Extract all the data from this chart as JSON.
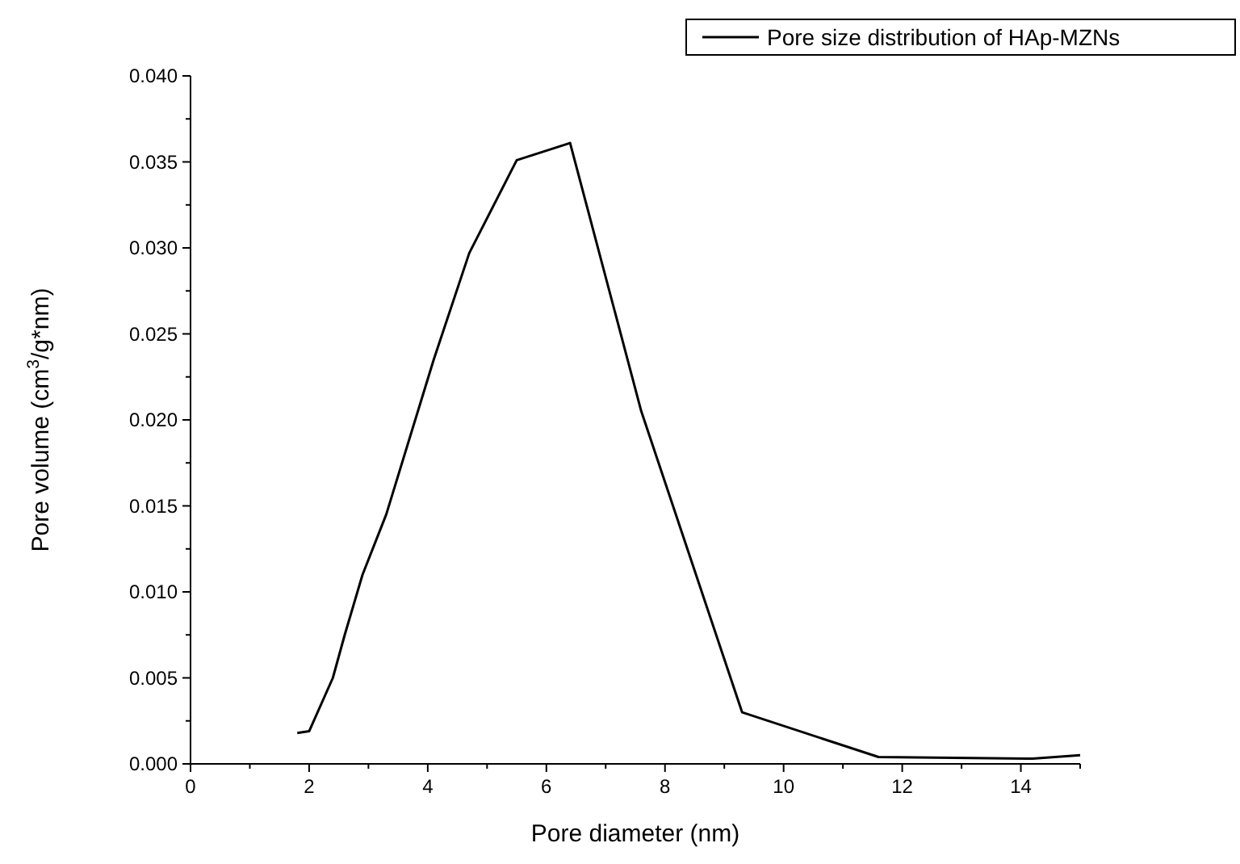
{
  "chart_data": {
    "type": "line",
    "xlabel": "Pore diameter (nm)",
    "ylabel": "Pore volume (cm$^{3}$/g*nm)",
    "x": [
      1.8,
      2.0,
      2.4,
      2.6,
      2.9,
      3.3,
      4.1,
      4.7,
      5.5,
      6.4,
      7.6,
      9.3,
      11.6,
      14.2,
      15.0
    ],
    "series": [
      {
        "name": "Pore size distribution of HAp-MZNs",
        "color": "#000000",
        "values": [
          0.0018,
          0.0019,
          0.005,
          0.0075,
          0.011,
          0.0145,
          0.0235,
          0.0297,
          0.0351,
          0.0361,
          0.0205,
          0.003,
          0.0004,
          0.0003,
          0.0005
        ]
      }
    ],
    "xlim": [
      0,
      15
    ],
    "ylim": [
      0,
      0.04
    ],
    "xticks": [
      0,
      {
        "value": 1,
        "label": null
      },
      2,
      {
        "value": 3,
        "label": null
      },
      4,
      {
        "value": 5,
        "label": null
      },
      6,
      {
        "value": 7,
        "label": null
      },
      8,
      {
        "value": 9,
        "label": null
      },
      10,
      {
        "value": 11,
        "label": null
      },
      12,
      {
        "value": 13,
        "label": null
      },
      14,
      {
        "value": 15,
        "label": null
      }
    ],
    "yticks": [
      {
        "value": 0,
        "label": "0.000"
      },
      {
        "value": 0.0025,
        "label": null
      },
      {
        "value": 0.005,
        "label": "0.005"
      },
      {
        "value": 0.0075,
        "label": null
      },
      {
        "value": 0.01,
        "label": "0.010"
      },
      {
        "value": 0.0125,
        "label": null
      },
      {
        "value": 0.015,
        "label": "0.015"
      },
      {
        "value": 0.0175,
        "label": null
      },
      {
        "value": 0.02,
        "label": "0.020"
      },
      {
        "value": 0.0225,
        "label": null
      },
      {
        "value": 0.025,
        "label": "0.025"
      },
      {
        "value": 0.0275,
        "label": null
      },
      {
        "value": 0.03,
        "label": "0.030"
      },
      {
        "value": 0.0325,
        "label": null
      },
      {
        "value": 0.035,
        "label": "0.035"
      },
      {
        "value": 0.0375,
        "label": null
      },
      {
        "value": 0.04,
        "label": "0.040"
      }
    ],
    "legend": "top right",
    "grid": false,
    "marker": "none",
    "line_style": "solid"
  }
}
